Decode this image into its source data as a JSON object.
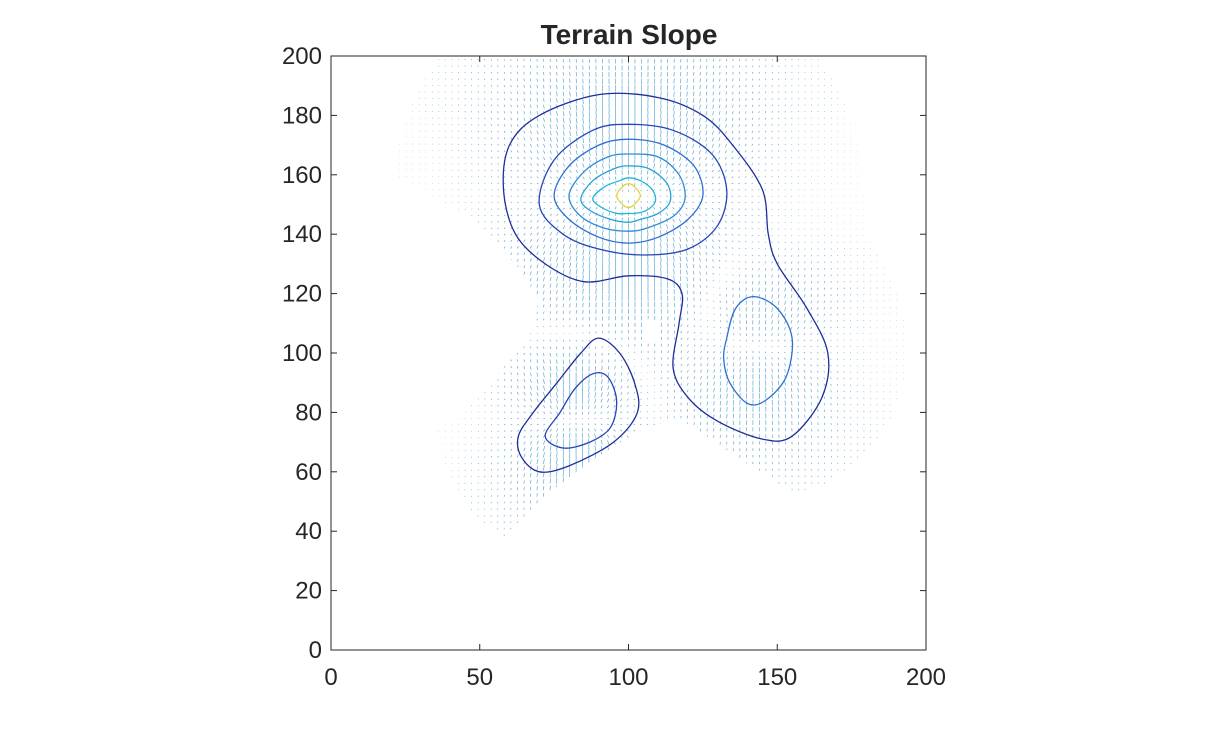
{
  "chart_data": {
    "type": "quiver-contour",
    "title": "Terrain Slope",
    "xlabel": "",
    "ylabel": "",
    "xlim": [
      0,
      200
    ],
    "ylim": [
      0,
      200
    ],
    "x_ticks": [
      0,
      50,
      100,
      150,
      200
    ],
    "y_ticks": [
      0,
      20,
      40,
      60,
      80,
      100,
      120,
      140,
      160,
      180,
      200
    ],
    "grid": false,
    "legend": "none",
    "colors": {
      "axis": "#262626",
      "quiver": "#2b8cc4",
      "contour_low": "#1f2e9a",
      "contour_mid": "#2f6fd0",
      "contour_high": "#28a0d8",
      "peak": "#e6d23a"
    },
    "contours": [
      {
        "level": 1,
        "color": "#1f2e9a",
        "points": [
          [
            60,
            170
          ],
          [
            70,
            180
          ],
          [
            90,
            187
          ],
          [
            110,
            186
          ],
          [
            125,
            180
          ],
          [
            135,
            170
          ],
          [
            145,
            155
          ],
          [
            147,
            140
          ],
          [
            150,
            130
          ],
          [
            160,
            115
          ],
          [
            167,
            100
          ],
          [
            165,
            85
          ],
          [
            155,
            72
          ],
          [
            145,
            71
          ],
          [
            130,
            77
          ],
          [
            120,
            85
          ],
          [
            115,
            95
          ],
          [
            117,
            110
          ],
          [
            118,
            120
          ],
          [
            113,
            125
          ],
          [
            100,
            126
          ],
          [
            85,
            124
          ],
          [
            72,
            130
          ],
          [
            62,
            140
          ],
          [
            58,
            155
          ],
          [
            60,
            170
          ]
        ]
      },
      {
        "level": 2,
        "color": "#2545b8",
        "points": [
          [
            70,
            150
          ],
          [
            75,
            165
          ],
          [
            88,
            175
          ],
          [
            100,
            177
          ],
          [
            115,
            175
          ],
          [
            128,
            167
          ],
          [
            133,
            155
          ],
          [
            130,
            143
          ],
          [
            120,
            135
          ],
          [
            105,
            133
          ],
          [
            90,
            135
          ],
          [
            78,
            140
          ],
          [
            70,
            150
          ]
        ]
      },
      {
        "level": 3,
        "color": "#2f6fd0",
        "points": [
          [
            75,
            153
          ],
          [
            80,
            163
          ],
          [
            90,
            170
          ],
          [
            100,
            172
          ],
          [
            112,
            170
          ],
          [
            122,
            163
          ],
          [
            125,
            153
          ],
          [
            120,
            145
          ],
          [
            110,
            139
          ],
          [
            100,
            137
          ],
          [
            90,
            139
          ],
          [
            80,
            145
          ],
          [
            75,
            153
          ]
        ]
      },
      {
        "level": 4,
        "color": "#2f8ad6",
        "points": [
          [
            80,
            153
          ],
          [
            85,
            161
          ],
          [
            93,
            166
          ],
          [
            100,
            167
          ],
          [
            110,
            166
          ],
          [
            117,
            160
          ],
          [
            119,
            152
          ],
          [
            115,
            146
          ],
          [
            106,
            142
          ],
          [
            100,
            141
          ],
          [
            92,
            142
          ],
          [
            84,
            146
          ],
          [
            80,
            153
          ]
        ]
      },
      {
        "level": 5,
        "color": "#28a0d8",
        "points": [
          [
            84,
            152
          ],
          [
            88,
            158
          ],
          [
            95,
            162
          ],
          [
            100,
            163
          ],
          [
            107,
            162
          ],
          [
            113,
            157
          ],
          [
            114,
            151
          ],
          [
            110,
            147
          ],
          [
            104,
            145
          ],
          [
            100,
            144
          ],
          [
            94,
            145
          ],
          [
            87,
            148
          ],
          [
            84,
            152
          ]
        ]
      },
      {
        "level": 6,
        "color": "#22b5d5",
        "points": [
          [
            88,
            152
          ],
          [
            92,
            156
          ],
          [
            97,
            158
          ],
          [
            100,
            159
          ],
          [
            104,
            158
          ],
          [
            108,
            155
          ],
          [
            109,
            151
          ],
          [
            106,
            148
          ],
          [
            102,
            147
          ],
          [
            100,
            147
          ],
          [
            96,
            147
          ],
          [
            91,
            149
          ],
          [
            88,
            152
          ]
        ]
      },
      {
        "level": 7,
        "color": "#e6d23a",
        "points": [
          [
            96,
            153
          ],
          [
            98,
            156
          ],
          [
            100,
            157
          ],
          [
            102,
            156
          ],
          [
            104,
            153
          ],
          [
            102,
            150
          ],
          [
            100,
            149
          ],
          [
            98,
            150
          ],
          [
            96,
            153
          ]
        ]
      },
      {
        "level": 1,
        "color": "#1f2e9a",
        "points": [
          [
            64,
            65
          ],
          [
            70,
            60
          ],
          [
            80,
            62
          ],
          [
            95,
            70
          ],
          [
            103,
            80
          ],
          [
            102,
            90
          ],
          [
            97,
            100
          ],
          [
            90,
            105
          ],
          [
            84,
            100
          ],
          [
            76,
            90
          ],
          [
            68,
            80
          ],
          [
            63,
            72
          ],
          [
            64,
            65
          ]
        ]
      },
      {
        "level": 2,
        "color": "#2545b8",
        "points": [
          [
            72,
            72
          ],
          [
            78,
            68
          ],
          [
            87,
            70
          ],
          [
            94,
            75
          ],
          [
            96,
            84
          ],
          [
            93,
            92
          ],
          [
            88,
            93
          ],
          [
            82,
            88
          ],
          [
            77,
            80
          ],
          [
            72,
            72
          ]
        ]
      },
      {
        "level": 2,
        "color": "#2f6fd0",
        "points": [
          [
            133,
            105
          ],
          [
            136,
            115
          ],
          [
            142,
            119
          ],
          [
            150,
            115
          ],
          [
            155,
            105
          ],
          [
            153,
            92
          ],
          [
            146,
            84
          ],
          [
            140,
            83
          ],
          [
            134,
            90
          ],
          [
            132,
            98
          ],
          [
            133,
            105
          ]
        ]
      }
    ]
  }
}
